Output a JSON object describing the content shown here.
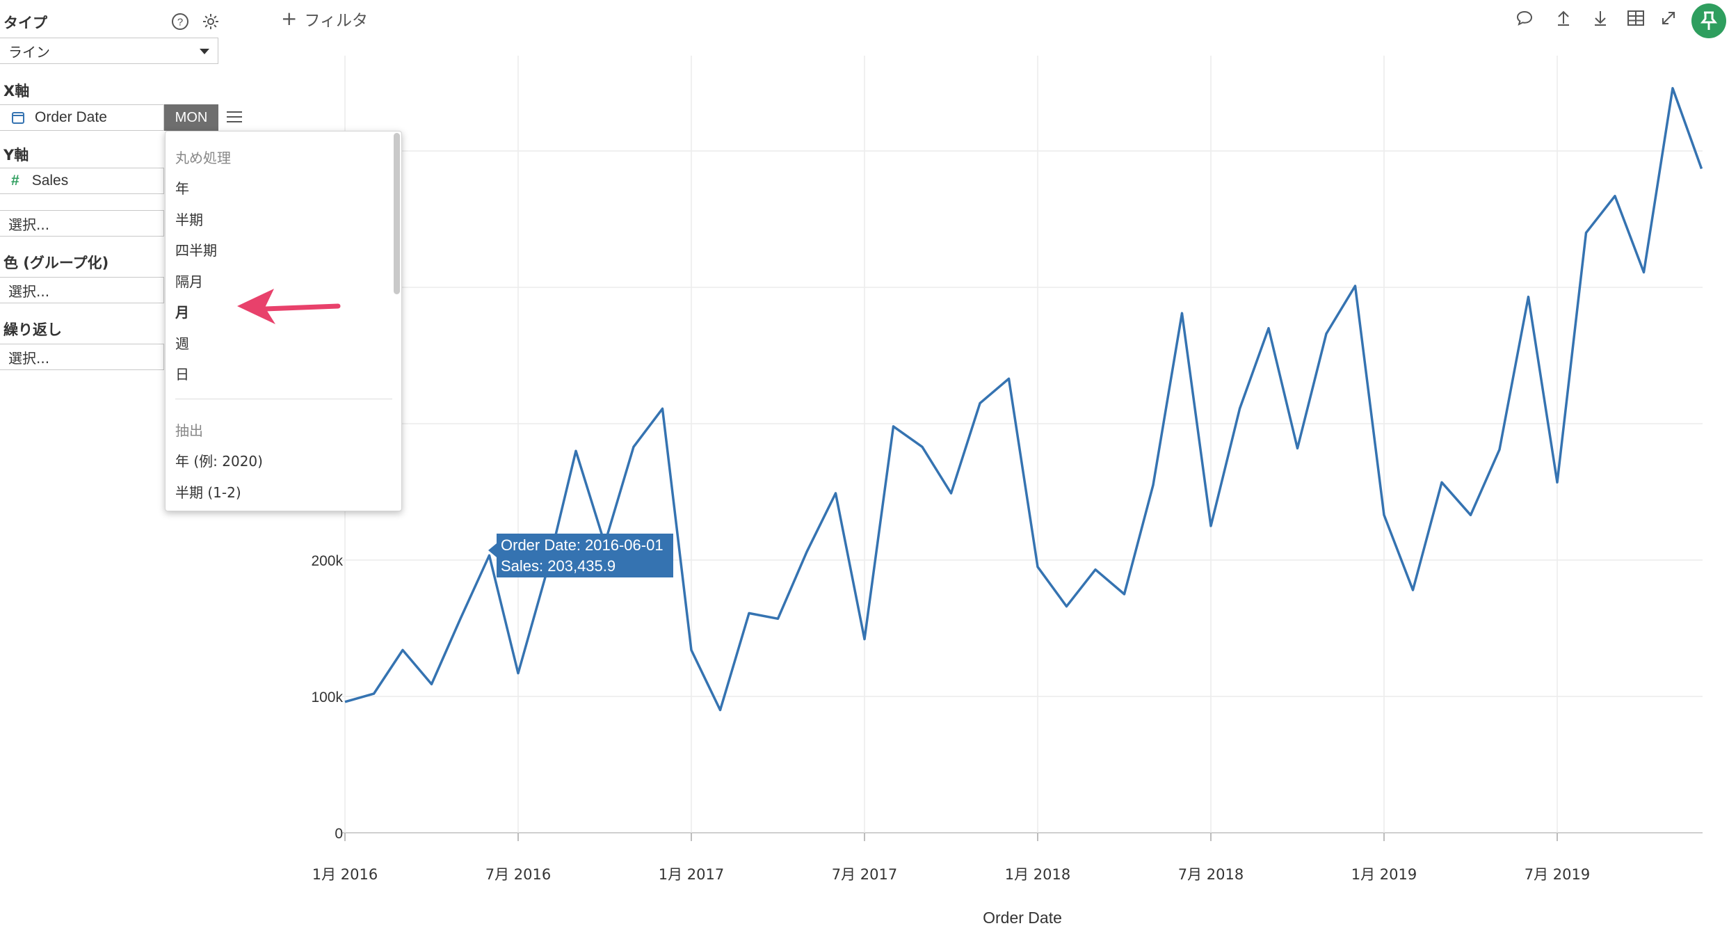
{
  "panel": {
    "type_label": "タイプ",
    "type_value": "ライン",
    "x_label": "X軸",
    "x_field": "Order Date",
    "x_mode": "MON",
    "y_label": "Y軸",
    "y_field": "Sales",
    "y_extra_placeholder": "選択...",
    "color_label": "色 (グループ化)",
    "color_placeholder": "選択...",
    "repeat_label": "繰り返し",
    "repeat_placeholder": "選択..."
  },
  "dropdown": {
    "round_heading": "丸め処理",
    "round_items": [
      "年",
      "半期",
      "四半期",
      "隔月",
      "月",
      "週",
      "日"
    ],
    "selected": "月",
    "extract_heading": "抽出",
    "extract_items": [
      "年 (例: 2020)",
      "半期 (1-2)"
    ]
  },
  "toolbar": {
    "filter_label": "フィルタ",
    "icons": [
      "comment-icon",
      "upload-icon",
      "download-icon",
      "table-icon",
      "expand-icon",
      "pin-icon"
    ]
  },
  "tooltip": {
    "line1": "Order Date: 2016-06-01",
    "line2": "Sales: 203,435.9"
  },
  "colors": {
    "line": "#3573b1",
    "accent": "#2e9e5e",
    "arrow": "#e8416b"
  },
  "chart_data": {
    "type": "line",
    "xlabel": "Order Date",
    "ylabel": "",
    "ylim": [
      0,
      550000
    ],
    "yticks": [
      0,
      100000,
      200000
    ],
    "ytick_labels": [
      "0",
      "100k",
      "200k"
    ],
    "xtick_labels": [
      "1月 2016",
      "7月 2016",
      "1月 2017",
      "7月 2017",
      "1月 2018",
      "7月 2018",
      "1月 2019",
      "7月 2019"
    ],
    "x_start": "2016-01",
    "series": [
      {
        "values": [
          96000,
          102000,
          134000,
          109000,
          157000,
          203436,
          117000,
          192000,
          280000,
          212000,
          283000,
          311000,
          134000,
          90000,
          161000,
          157000,
          206000,
          249000,
          142000,
          298000,
          283000,
          249000,
          315000,
          333000,
          195000,
          166000,
          193000,
          175000,
          255000,
          381000,
          225000,
          311000,
          370000,
          282000,
          366000,
          401000,
          233000,
          178000,
          257000,
          233000,
          281000,
          393000,
          257000,
          440000,
          467000,
          411000,
          546000,
          487000
        ]
      }
    ]
  }
}
